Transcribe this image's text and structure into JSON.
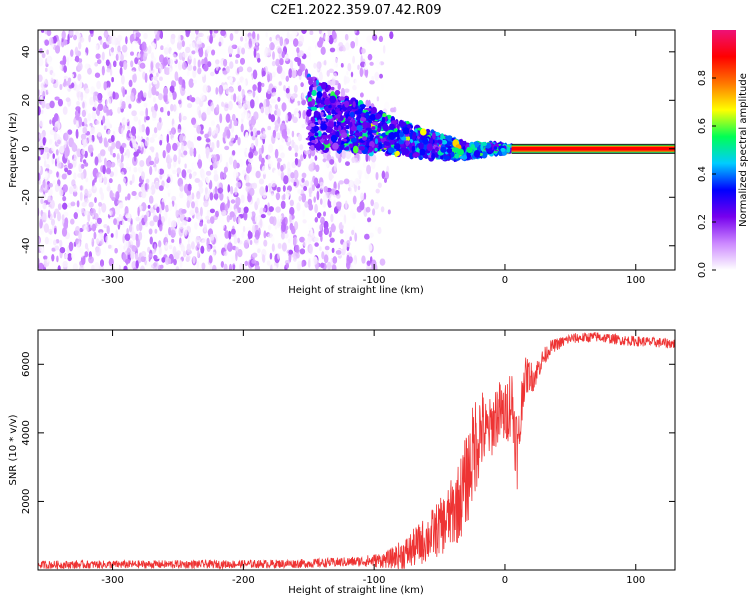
{
  "title": "C2E1.2022.359.07.42.R09",
  "chart_data": [
    {
      "type": "heatmap",
      "xlabel": "Height of straight line (km)",
      "ylabel": "Frequency (Hz)",
      "xlim": [
        -357,
        130
      ],
      "ylim": [
        -50,
        49
      ],
      "xticks": [
        -300,
        -200,
        -100,
        0,
        100
      ],
      "yticks": [
        -40,
        -20,
        0,
        20,
        40
      ],
      "colorbar": {
        "label": "Normalized spectral amplitude",
        "range": [
          0,
          1
        ],
        "ticks": [
          "0.0",
          "0.2",
          "0.4",
          "0.6",
          "0.8"
        ],
        "colors": [
          "#ffffff",
          "#cc88ff",
          "#7700ee",
          "#0000ff",
          "#00ccff",
          "#00ff55",
          "#ffff00",
          "#ff7700",
          "#ff0000",
          "#ee1177"
        ]
      },
      "noise_region_x": [
        -357,
        -95
      ],
      "signal_track": {
        "x": [
          -150,
          -100,
          -70,
          -50,
          -30,
          -10,
          5,
          130
        ],
        "center_hz": [
          15,
          7,
          3,
          1,
          -1,
          0,
          0,
          0
        ],
        "spread_hz": [
          15,
          9,
          6,
          5,
          3,
          2,
          1,
          0.5
        ]
      },
      "carrier_line": {
        "x_start": 5,
        "x_end": 130,
        "frequency_hz": 0,
        "color": "#ff0000"
      }
    },
    {
      "type": "line",
      "xlabel": "Height of straight line (km)",
      "ylabel": "SNR (10 * v/v)",
      "xlim": [
        -357,
        130
      ],
      "ylim": [
        0,
        7000
      ],
      "xticks": [
        -300,
        -200,
        -100,
        0,
        100
      ],
      "yticks": [
        2000,
        4000,
        6000
      ],
      "series": [
        {
          "color": "#ee3333",
          "x": [
            -357,
            -300,
            -200,
            -150,
            -110,
            -90,
            -75,
            -60,
            -45,
            -35,
            -28,
            -22,
            -18,
            -14,
            -10,
            -6,
            0,
            5,
            10,
            14,
            18,
            22,
            28,
            35,
            50,
            70,
            90,
            110,
            130
          ],
          "y": [
            150,
            160,
            170,
            190,
            250,
            300,
            500,
            900,
            1400,
            2000,
            2800,
            3800,
            4100,
            4000,
            4200,
            4600,
            4500,
            5000,
            3300,
            5500,
            5700,
            5600,
            6100,
            6500,
            6750,
            6800,
            6700,
            6650,
            6600
          ],
          "noise": [
            120,
            120,
            120,
            130,
            150,
            250,
            500,
            700,
            900,
            1200,
            1400,
            1500,
            1300,
            900,
            900,
            1000,
            900,
            1100,
            1200,
            700,
            500,
            400,
            300,
            200,
            150,
            150,
            150,
            150,
            150
          ]
        }
      ]
    }
  ]
}
